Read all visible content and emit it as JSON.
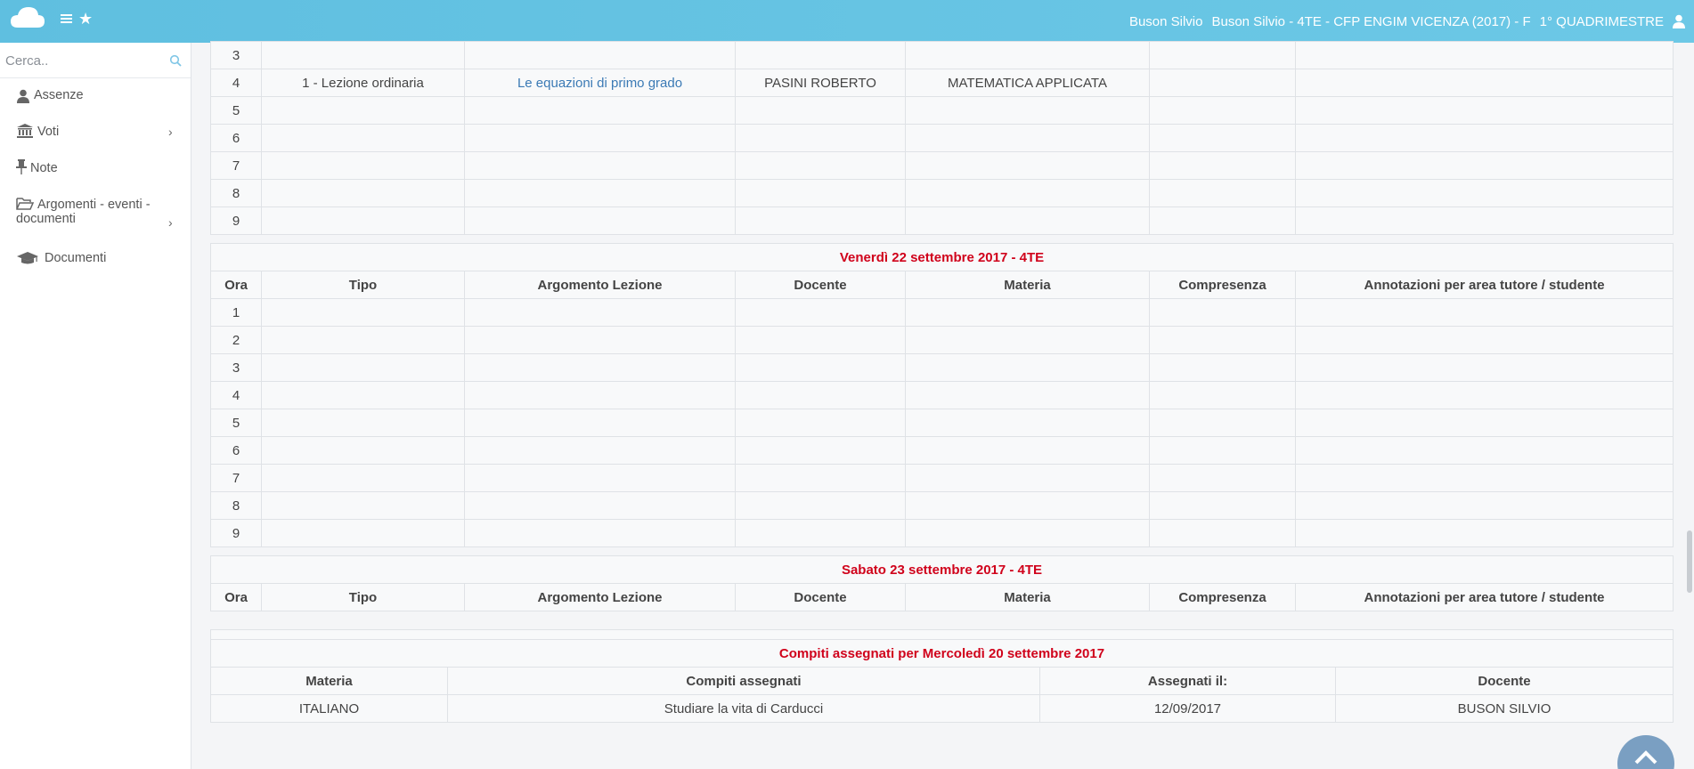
{
  "header": {
    "user": "Buson Silvio",
    "class_info": "Buson Silvio - 4TE - CFP ENGIM VICENZA (2017) - F",
    "period": "1° QUADRIMESTRE"
  },
  "search": {
    "placeholder": "Cerca.."
  },
  "sidebar": {
    "items": [
      {
        "label": "Assenze",
        "icon": "user-icon"
      },
      {
        "label": "Voti",
        "icon": "bank-icon",
        "has_submenu": true
      },
      {
        "label": "Note",
        "icon": "pin-icon"
      },
      {
        "label": "Argomenti - eventi - documenti",
        "line1": "Argomenti - eventi -",
        "line2": "documenti",
        "icon": "folder-open-icon",
        "has_submenu": true
      },
      {
        "label": "Documenti",
        "icon": "graduation-cap-icon"
      }
    ]
  },
  "columns": [
    "Ora",
    "Tipo",
    "Argomento Lezione",
    "Docente",
    "Materia",
    "Compresenza",
    "Annotazioni per area tutore / studente"
  ],
  "prev_day": {
    "rows": [
      {
        "ora": "3",
        "tipo": "",
        "argomento": "",
        "docente": "",
        "materia": ""
      },
      {
        "ora": "4",
        "tipo": "1 - Lezione ordinaria",
        "argomento": "Le equazioni di primo grado",
        "docente": "PASINI ROBERTO",
        "materia": "MATEMATICA APPLICATA"
      },
      {
        "ora": "5"
      },
      {
        "ora": "6"
      },
      {
        "ora": "7"
      },
      {
        "ora": "8"
      },
      {
        "ora": "9"
      }
    ]
  },
  "friday": {
    "title": "Venerdì 22 settembre 2017 - 4TE",
    "rows": [
      "1",
      "2",
      "3",
      "4",
      "5",
      "6",
      "7",
      "8",
      "9"
    ]
  },
  "saturday": {
    "title": "Sabato 23 settembre 2017 - 4TE"
  },
  "homework": {
    "title": "Compiti assegnati per Mercoledì 20 settembre 2017",
    "columns": [
      "Materia",
      "Compiti assegnati",
      "Assegnati il:",
      "Docente"
    ],
    "rows": [
      {
        "materia": "ITALIANO",
        "compito": "Studiare la vita di Carducci",
        "data": "12/09/2017",
        "docente": "BUSON SILVIO"
      }
    ]
  },
  "colors": {
    "topbar": "#6cc8e6",
    "day_title": "#d0021b",
    "link": "#3b7ab5"
  }
}
